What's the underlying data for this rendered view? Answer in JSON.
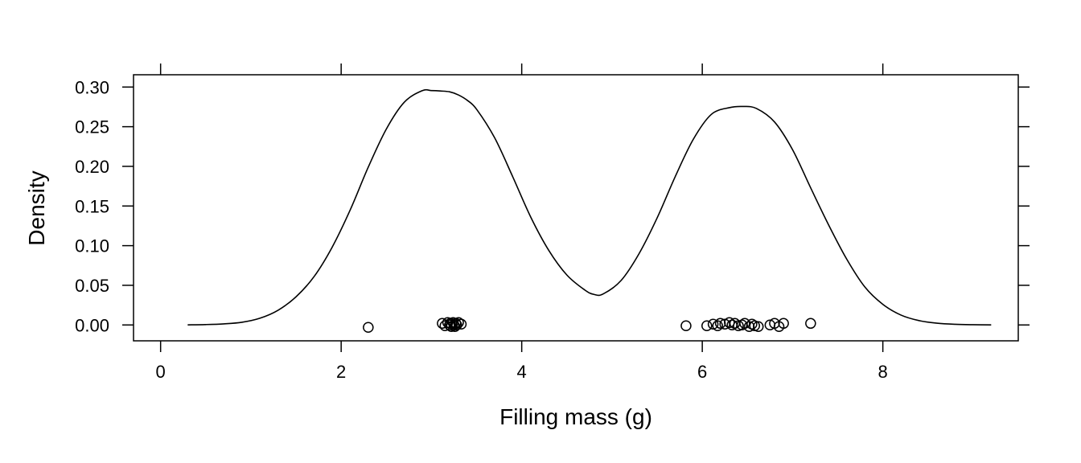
{
  "chart_data": {
    "type": "density",
    "title": "",
    "xlabel": "Filling mass (g)",
    "ylabel": "Density",
    "xlim": [
      -0.3,
      9.5
    ],
    "ylim": [
      -0.02,
      0.3155
    ],
    "x_ticks": [
      0,
      2,
      4,
      6,
      8
    ],
    "x_tick_labels": [
      "0",
      "2",
      "4",
      "6",
      "8"
    ],
    "y_ticks": [
      0.0,
      0.05,
      0.1,
      0.15,
      0.2,
      0.25,
      0.3
    ],
    "y_tick_labels": [
      "0.00",
      "0.05",
      "0.10",
      "0.15",
      "0.20",
      "0.25",
      "0.30"
    ],
    "grid": false,
    "density_curve": {
      "x": [
        0.3,
        0.5,
        0.7,
        0.9,
        1.1,
        1.3,
        1.5,
        1.7,
        1.9,
        2.1,
        2.3,
        2.5,
        2.7,
        2.9,
        3.0,
        3.1,
        3.2,
        3.3,
        3.4,
        3.5,
        3.7,
        3.9,
        4.1,
        4.3,
        4.5,
        4.7,
        4.8,
        4.9,
        5.1,
        5.3,
        5.5,
        5.7,
        5.9,
        6.1,
        6.3,
        6.45,
        6.6,
        6.8,
        7.0,
        7.2,
        7.4,
        7.6,
        7.8,
        8.0,
        8.2,
        8.4,
        8.6,
        8.8,
        9.0,
        9.2
      ],
      "y": [
        0.0001,
        0.0005,
        0.0014,
        0.0034,
        0.0085,
        0.0185,
        0.0355,
        0.061,
        0.098,
        0.145,
        0.199,
        0.247,
        0.281,
        0.2955,
        0.2955,
        0.295,
        0.294,
        0.29,
        0.283,
        0.272,
        0.236,
        0.187,
        0.136,
        0.094,
        0.063,
        0.044,
        0.0385,
        0.039,
        0.056,
        0.09,
        0.135,
        0.187,
        0.234,
        0.2655,
        0.274,
        0.2755,
        0.273,
        0.256,
        0.221,
        0.173,
        0.126,
        0.083,
        0.048,
        0.026,
        0.0125,
        0.0055,
        0.0022,
        0.0008,
        0.0003,
        0.0001
      ]
    },
    "rug_points": {
      "x": [
        2.3,
        3.12,
        3.15,
        3.18,
        3.2,
        3.21,
        3.22,
        3.24,
        3.25,
        3.26,
        3.27,
        3.28,
        3.3,
        3.33,
        5.82,
        6.05,
        6.12,
        6.17,
        6.2,
        6.25,
        6.3,
        6.33,
        6.36,
        6.4,
        6.44,
        6.47,
        6.52,
        6.55,
        6.58,
        6.62,
        6.75,
        6.8,
        6.85,
        6.9,
        7.2
      ],
      "y": [
        -0.003,
        0.002,
        -0.001,
        0.003,
        0.0,
        0.002,
        -0.002,
        0.003,
        0.0,
        -0.002,
        0.002,
        0.0,
        0.003,
        0.001,
        -0.001,
        -0.001,
        0.001,
        -0.001,
        0.002,
        0.001,
        0.003,
        0.0,
        0.002,
        -0.001,
        0.0,
        0.002,
        -0.002,
        0.001,
        -0.001,
        -0.002,
        0.0,
        0.002,
        -0.002,
        0.002,
        0.002
      ]
    }
  }
}
